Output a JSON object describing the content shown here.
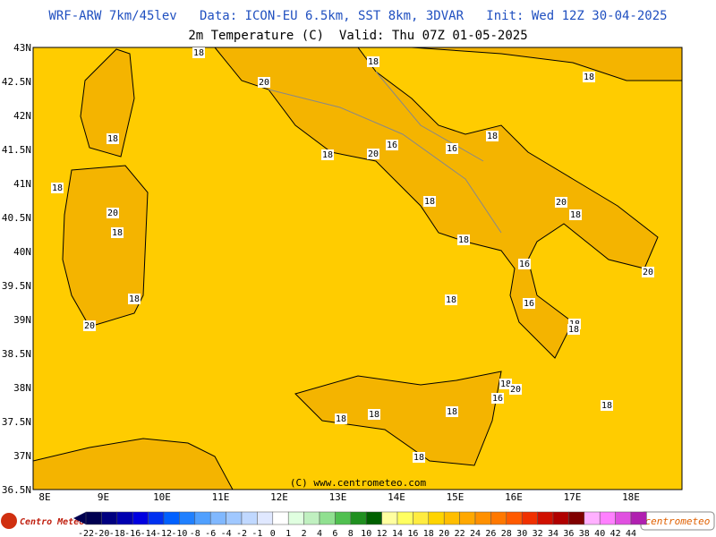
{
  "header": {
    "line1": "WRF-ARW 7km/45lev   Data: ICON-EU 6.5km, SST 8km, 3DVAR   Init: Wed 12Z 30-04-2025",
    "line2": "2m Temperature (C)  Valid: Thu 07Z 01-05-2025"
  },
  "lat_labels": [
    "43N",
    "42.5N",
    "42N",
    "41.5N",
    "41N",
    "40.5N",
    "40N",
    "39.5N",
    "39N",
    "38.5N",
    "38N",
    "37.5N",
    "37N",
    "36.5N"
  ],
  "lon_labels": [
    "8E",
    "9E",
    "10E",
    "11E",
    "12E",
    "13E",
    "14E",
    "15E",
    "16E",
    "17E",
    "18E"
  ],
  "contour_labels": [
    "18",
    "20",
    "18",
    "18",
    "18",
    "16",
    "18",
    "20",
    "16",
    "18",
    "18",
    "20",
    "18",
    "20",
    "18",
    "18",
    "18",
    "16",
    "20",
    "18",
    "18",
    "16",
    "20",
    "18",
    "18",
    "18",
    "16",
    "20",
    "18",
    "18",
    "18",
    "18",
    "18"
  ],
  "copyright": "(C) www.centrometeo.com",
  "colorbar": {
    "labels": [
      -22,
      -20,
      -18,
      -16,
      -14,
      -12,
      -10,
      -8,
      -6,
      -4,
      -2,
      -1,
      0,
      1,
      2,
      4,
      6,
      8,
      10,
      12,
      14,
      16,
      18,
      20,
      22,
      24,
      26,
      28,
      30,
      32,
      34,
      36,
      38,
      40,
      42,
      44
    ],
    "colors": [
      "#000050",
      "#000080",
      "#0000b0",
      "#0000e0",
      "#0030f0",
      "#0060ff",
      "#2080ff",
      "#50a0ff",
      "#80b8ff",
      "#a0c8ff",
      "#c0d8ff",
      "#e0e8ff",
      "#ffffff",
      "#e0ffe0",
      "#c0f0c0",
      "#90e090",
      "#50c050",
      "#209020",
      "#006000",
      "#ffffa0",
      "#ffff60",
      "#ffec40",
      "#ffd400",
      "#ffbe00",
      "#ffa800",
      "#ff9000",
      "#ff7800",
      "#ff5a00",
      "#f03000",
      "#d01000",
      "#b00000",
      "#800000",
      "#ffb0ff",
      "#ff80ff",
      "#e050e0",
      "#b020b0"
    ]
  },
  "logo_left": "Centro Meteo Ita",
  "logo_right": "centrometeo"
}
